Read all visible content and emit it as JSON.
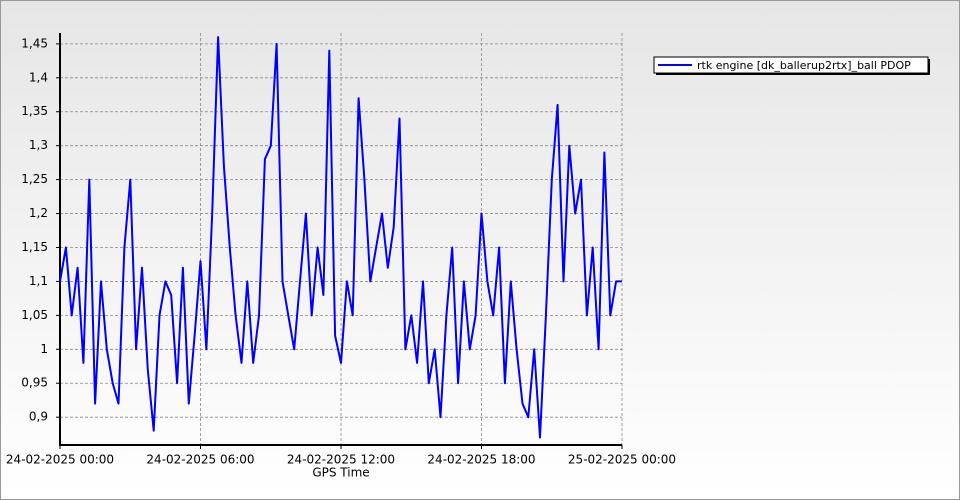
{
  "chart_data": {
    "type": "line",
    "x_label": "GPS Time",
    "x": [
      "24-02-2025 00:00",
      "24-02-2025 00:15",
      "24-02-2025 00:30",
      "24-02-2025 00:45",
      "24-02-2025 01:00",
      "24-02-2025 01:15",
      "24-02-2025 01:30",
      "24-02-2025 01:45",
      "24-02-2025 02:00",
      "24-02-2025 02:15",
      "24-02-2025 02:30",
      "24-02-2025 02:45",
      "24-02-2025 03:00",
      "24-02-2025 03:15",
      "24-02-2025 03:30",
      "24-02-2025 03:45",
      "24-02-2025 04:00",
      "24-02-2025 04:15",
      "24-02-2025 04:30",
      "24-02-2025 04:45",
      "24-02-2025 05:00",
      "24-02-2025 05:15",
      "24-02-2025 05:30",
      "24-02-2025 05:45",
      "24-02-2025 06:00",
      "24-02-2025 06:15",
      "24-02-2025 06:30",
      "24-02-2025 06:45",
      "24-02-2025 07:00",
      "24-02-2025 07:15",
      "24-02-2025 07:30",
      "24-02-2025 07:45",
      "24-02-2025 08:00",
      "24-02-2025 08:15",
      "24-02-2025 08:30",
      "24-02-2025 08:45",
      "24-02-2025 09:00",
      "24-02-2025 09:15",
      "24-02-2025 09:30",
      "24-02-2025 09:45",
      "24-02-2025 10:00",
      "24-02-2025 10:15",
      "24-02-2025 10:30",
      "24-02-2025 10:45",
      "24-02-2025 11:00",
      "24-02-2025 11:15",
      "24-02-2025 11:30",
      "24-02-2025 11:45",
      "24-02-2025 12:00",
      "24-02-2025 12:15",
      "24-02-2025 12:30",
      "24-02-2025 12:45",
      "24-02-2025 13:00",
      "24-02-2025 13:15",
      "24-02-2025 13:30",
      "24-02-2025 13:45",
      "24-02-2025 14:00",
      "24-02-2025 14:15",
      "24-02-2025 14:30",
      "24-02-2025 14:45",
      "24-02-2025 15:00",
      "24-02-2025 15:15",
      "24-02-2025 15:30",
      "24-02-2025 15:45",
      "24-02-2025 16:00",
      "24-02-2025 16:15",
      "24-02-2025 16:30",
      "24-02-2025 16:45",
      "24-02-2025 17:00",
      "24-02-2025 17:15",
      "24-02-2025 17:30",
      "24-02-2025 17:45",
      "24-02-2025 18:00",
      "24-02-2025 18:15",
      "24-02-2025 18:30",
      "24-02-2025 18:45",
      "24-02-2025 19:00",
      "24-02-2025 19:15",
      "24-02-2025 19:30",
      "24-02-2025 19:45",
      "24-02-2025 20:00",
      "24-02-2025 20:15",
      "24-02-2025 20:30",
      "24-02-2025 20:45",
      "24-02-2025 21:00",
      "24-02-2025 21:15",
      "24-02-2025 21:30",
      "24-02-2025 21:45",
      "24-02-2025 22:00",
      "24-02-2025 22:15",
      "24-02-2025 22:30",
      "24-02-2025 22:45",
      "24-02-2025 23:00",
      "24-02-2025 23:15",
      "24-02-2025 23:30",
      "24-02-2025 23:45",
      "25-02-2025 00:00"
    ],
    "series": [
      {
        "name": "rtk engine [dk_ballerup2rtx]_ball PDOP",
        "color": "#0000ff",
        "values": [
          1.1,
          1.15,
          1.05,
          1.12,
          0.98,
          1.25,
          0.92,
          1.1,
          1.0,
          0.95,
          0.92,
          1.15,
          1.25,
          1.0,
          1.12,
          0.97,
          0.88,
          1.05,
          1.1,
          1.08,
          0.95,
          1.12,
          0.92,
          1.02,
          1.13,
          1.0,
          1.2,
          1.46,
          1.27,
          1.15,
          1.05,
          0.98,
          1.1,
          0.98,
          1.05,
          1.28,
          1.3,
          1.45,
          1.1,
          1.05,
          1.0,
          1.1,
          1.2,
          1.05,
          1.15,
          1.08,
          1.44,
          1.02,
          0.98,
          1.1,
          1.05,
          1.37,
          1.25,
          1.1,
          1.15,
          1.2,
          1.12,
          1.18,
          1.34,
          1.0,
          1.05,
          0.98,
          1.1,
          0.95,
          1.0,
          0.9,
          1.05,
          1.15,
          0.95,
          1.1,
          1.0,
          1.05,
          1.2,
          1.1,
          1.05,
          1.15,
          0.95,
          1.1,
          1.0,
          0.92,
          0.9,
          1.0,
          0.87,
          1.05,
          1.25,
          1.36,
          1.1,
          1.3,
          1.2,
          1.25,
          1.05,
          1.15,
          1.0,
          1.29,
          1.05,
          1.1,
          1.1
        ]
      }
    ],
    "xlim": [
      "24-02-2025 00:00",
      "25-02-2025 00:00"
    ],
    "xticks": [
      "24-02-2025 00:00",
      "24-02-2025 06:00",
      "24-02-2025 12:00",
      "24-02-2025 18:00",
      "25-02-2025 00:00"
    ],
    "ylim": [
      0.859,
      1.466
    ],
    "yticks": [
      {
        "value": 0.9,
        "label": "0,9"
      },
      {
        "value": 0.95,
        "label": "0,95"
      },
      1,
      {
        "value": 1.05,
        "label": "1,05"
      },
      {
        "value": 1.1,
        "label": "1,1"
      },
      {
        "value": 1.15,
        "label": "1,15"
      },
      {
        "value": 1.2,
        "label": "1,2"
      },
      {
        "value": 1.25,
        "label": "1,25"
      },
      {
        "value": 1.3,
        "label": "1,3"
      },
      {
        "value": 1.35,
        "label": "1,35"
      },
      {
        "value": 1.4,
        "label": "1,4"
      },
      {
        "value": 1.45,
        "label": "1,45"
      }
    ],
    "grid": true,
    "legend": "right"
  }
}
